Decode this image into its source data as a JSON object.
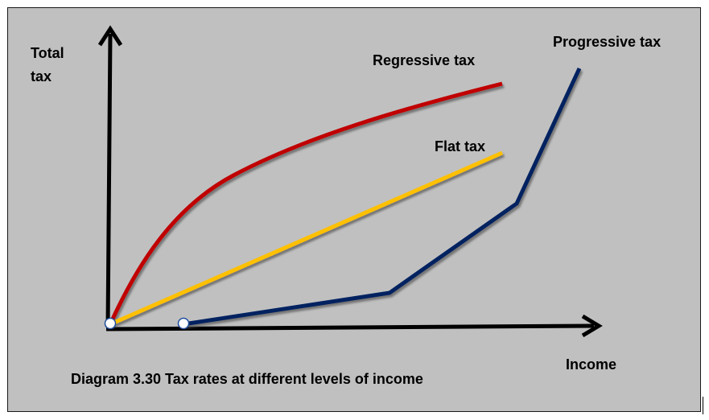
{
  "diagram": {
    "caption": "Diagram 3.30 Tax rates at different levels of income",
    "y_axis_label_line1": "Total",
    "y_axis_label_line2": "tax",
    "x_axis_label": "Income",
    "curves": {
      "regressive": {
        "label": "Regressive tax",
        "color": "#c00000"
      },
      "flat": {
        "label": "Flat tax",
        "color": "#ffc000"
      },
      "progressive": {
        "label": "Progressive tax",
        "color": "#002060"
      }
    },
    "axis_color": "#000000",
    "background_color": "#c0c0c0"
  }
}
